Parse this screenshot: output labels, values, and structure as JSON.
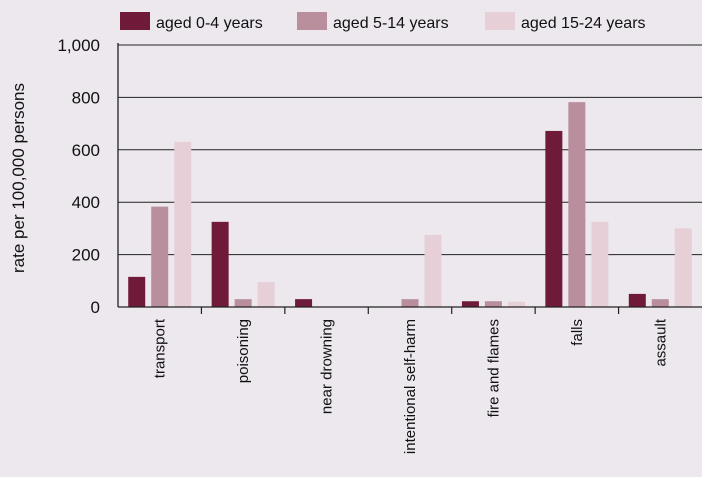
{
  "chart_data": {
    "type": "bar",
    "title": "",
    "xlabel": "",
    "ylabel": "rate per 100,000 persons",
    "ylim": [
      0,
      1000
    ],
    "yticks": [
      0,
      200,
      400,
      600,
      800,
      1000
    ],
    "ytick_labels": [
      "0",
      "200",
      "400",
      "600",
      "800",
      "1,000"
    ],
    "grid": true,
    "legend_position": "top",
    "categories": [
      "transport",
      "poisoning",
      "near drowning",
      "intentional self-harm",
      "fire and flames",
      "falls",
      "assault"
    ],
    "series": [
      {
        "name": "aged 0-4 years",
        "color": "#6e1a38",
        "values": [
          115,
          325,
          30,
          0,
          22,
          672,
          50
        ]
      },
      {
        "name": "aged 5-14 years",
        "color": "#b98f9e",
        "values": [
          383,
          30,
          0,
          30,
          22,
          782,
          30
        ]
      },
      {
        "name": "aged 15-24 years",
        "color": "#e6cfd7",
        "values": [
          630,
          95,
          0,
          275,
          20,
          325,
          300
        ]
      }
    ]
  }
}
